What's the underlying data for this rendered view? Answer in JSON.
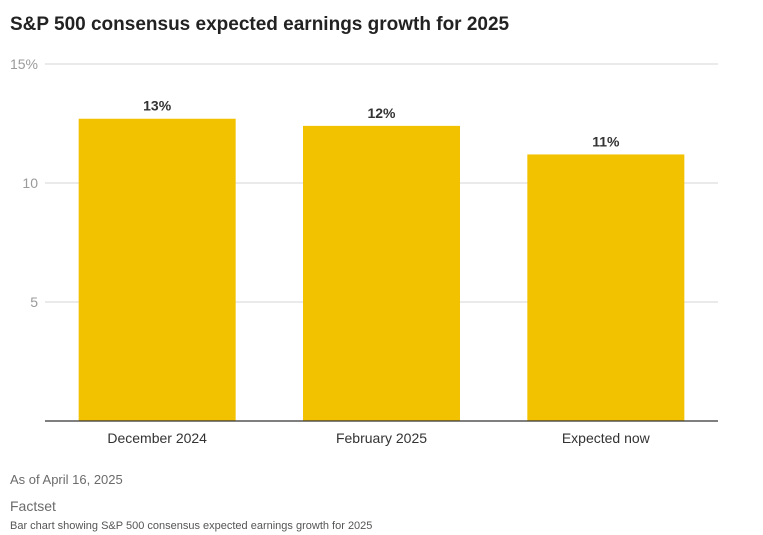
{
  "page": {
    "title": "S&P 500 consensus expected earnings growth for 2025",
    "as_of": "As of April 16, 2025",
    "source": "Factset",
    "alt_text": "Bar chart showing S&P 500 consensus expected earnings growth for 2025"
  },
  "colors": {
    "bar": "#f2c200",
    "grid": "#d6d6d6",
    "axis": "#333333",
    "tick_text": "#9a9a9a",
    "label_text": "#333333"
  },
  "chart_data": {
    "type": "bar",
    "title": "S&P 500 consensus expected earnings growth for 2025",
    "categories": [
      "December 2024",
      "February 2025",
      "Expected now"
    ],
    "values": [
      12.7,
      12.4,
      11.2
    ],
    "data_labels": [
      "13%",
      "12%",
      "11%"
    ],
    "ylim": [
      0,
      15
    ],
    "yticks": [
      5,
      10,
      15
    ],
    "ytick_labels": [
      "5",
      "10",
      "15%"
    ],
    "xlabel": "",
    "ylabel": "",
    "grid": true,
    "legend": "none"
  }
}
